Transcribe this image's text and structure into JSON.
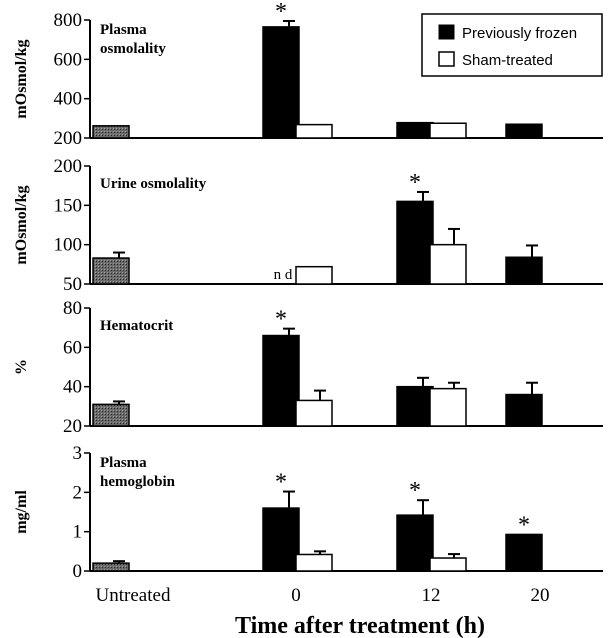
{
  "chart_data": {
    "type": "bar",
    "xlabel": "Time after treatment (h)",
    "categories": [
      "Untreated",
      "0",
      "12",
      "20"
    ],
    "legend": {
      "placement": "top-right",
      "entries": [
        {
          "label": "Previously frozen",
          "color": "#000000"
        },
        {
          "label": "Sham-treated",
          "color": "#ffffff"
        }
      ]
    },
    "untreated_fill": "#555555",
    "panels": [
      {
        "title": "Plasma osmolality",
        "ylabel": "mOsmol/kg",
        "ylim": [
          200,
          800
        ],
        "yticks": [
          200,
          400,
          600,
          800
        ],
        "untreated": {
          "value": 262,
          "err": 0
        },
        "series": [
          {
            "name": "Previously frozen",
            "values": [
              765,
              278,
              270
            ],
            "errors": [
              30,
              0,
              0
            ],
            "significant": [
              true,
              false,
              false
            ]
          },
          {
            "name": "Sham-treated",
            "values": [
              268,
              275,
              null
            ],
            "errors": [
              0,
              0,
              null
            ],
            "significant": [
              false,
              false,
              false
            ]
          }
        ],
        "annotations": []
      },
      {
        "title": "Urine osmolality",
        "ylabel": "mOsmol/kg",
        "ylim": [
          50,
          200
        ],
        "yticks": [
          50,
          100,
          150,
          200
        ],
        "untreated": {
          "value": 83,
          "err": 7
        },
        "series": [
          {
            "name": "Previously frozen",
            "values": [
              null,
              155,
              84
            ],
            "errors": [
              null,
              12,
              15
            ],
            "significant": [
              false,
              true,
              false
            ]
          },
          {
            "name": "Sham-treated",
            "values": [
              72,
              100,
              null
            ],
            "errors": [
              0,
              20,
              null
            ],
            "significant": [
              false,
              false,
              false
            ]
          }
        ],
        "annotations": [
          {
            "text": "n d",
            "category": "0",
            "series": "Previously frozen"
          }
        ]
      },
      {
        "title": "Hematocrit",
        "ylabel": "%",
        "ylim": [
          20,
          80
        ],
        "yticks": [
          20,
          40,
          60,
          80
        ],
        "untreated": {
          "value": 31,
          "err": 1.5
        },
        "series": [
          {
            "name": "Previously frozen",
            "values": [
              66,
              40,
              36
            ],
            "errors": [
              3.5,
              4.5,
              6
            ],
            "significant": [
              true,
              false,
              false
            ]
          },
          {
            "name": "Sham-treated",
            "values": [
              33,
              39,
              null
            ],
            "errors": [
              5,
              3,
              null
            ],
            "significant": [
              false,
              false,
              false
            ]
          }
        ],
        "annotations": []
      },
      {
        "title": "Plasma hemoglobin",
        "ylabel": "mg/ml",
        "ylim": [
          0,
          3
        ],
        "yticks": [
          0,
          1,
          2,
          3
        ],
        "untreated": {
          "value": 0.2,
          "err": 0.05
        },
        "series": [
          {
            "name": "Previously frozen",
            "values": [
              1.6,
              1.42,
              0.93
            ],
            "errors": [
              0.42,
              0.38,
              0
            ],
            "significant": [
              true,
              true,
              true
            ]
          },
          {
            "name": "Sham-treated",
            "values": [
              0.42,
              0.33,
              null
            ],
            "errors": [
              0.08,
              0.1,
              null
            ],
            "significant": [
              false,
              false,
              false
            ]
          }
        ],
        "annotations": []
      }
    ]
  }
}
